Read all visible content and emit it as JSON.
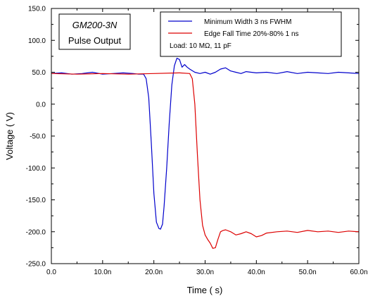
{
  "chart_data": {
    "type": "line",
    "title_box": {
      "line1": "GM200-3N",
      "line2": "Pulse Output"
    },
    "xlabel": "Time (   s)",
    "ylabel": "Voltage (  V)",
    "xlim": [
      0,
      60
    ],
    "ylim": [
      -250,
      150
    ],
    "x_ticks": [
      {
        "value": 0,
        "label": "0.0"
      },
      {
        "value": 10,
        "label": "10.0n"
      },
      {
        "value": 20,
        "label": "20.0n"
      },
      {
        "value": 30,
        "label": "30.0n"
      },
      {
        "value": 40,
        "label": "40.0n"
      },
      {
        "value": 50,
        "label": "50.0n"
      },
      {
        "value": 60,
        "label": "60.0n"
      }
    ],
    "y_ticks": [
      {
        "value": 150,
        "label": "150.0"
      },
      {
        "value": 100,
        "label": "100.0"
      },
      {
        "value": 50,
        "label": "50.0"
      },
      {
        "value": 0,
        "label": "0.0"
      },
      {
        "value": -50,
        "label": "-50.0"
      },
      {
        "value": -100,
        "label": "-100.0"
      },
      {
        "value": -150,
        "label": "-150.0"
      },
      {
        "value": -200,
        "label": "-200.0"
      },
      {
        "value": -250,
        "label": "-250.0"
      }
    ],
    "legend_note": "Load: 10 MΩ, 11 pF",
    "series": [
      {
        "name": "Minimum Width 3 ns FWHM",
        "color": "#0000cc",
        "x": [
          0,
          2,
          4,
          6,
          8,
          10,
          12,
          14,
          16,
          17,
          18,
          18.5,
          19,
          19.5,
          20,
          20.5,
          21,
          21.3,
          21.7,
          22,
          22.5,
          23,
          23.5,
          24,
          24.5,
          25,
          25.5,
          26,
          26.5,
          27,
          28,
          29,
          30,
          31,
          32,
          33,
          34,
          35,
          36,
          37,
          38,
          40,
          42,
          44,
          46,
          48,
          50,
          52,
          54,
          56,
          58,
          60
        ],
        "y": [
          48,
          49,
          47,
          48,
          50,
          47,
          48,
          49,
          48,
          47,
          47,
          40,
          10,
          -60,
          -140,
          -185,
          -195,
          -196,
          -188,
          -160,
          -100,
          -30,
          30,
          60,
          72,
          70,
          58,
          62,
          58,
          55,
          50,
          48,
          50,
          47,
          50,
          55,
          57,
          52,
          50,
          48,
          51,
          49,
          50,
          48,
          51,
          48,
          50,
          49,
          48,
          50,
          49,
          48
        ]
      },
      {
        "name": "Edge Fall Time 20%-80% 1 ns",
        "color": "#dd0000",
        "x": [
          0,
          5,
          10,
          15,
          20,
          25,
          27,
          27.5,
          28,
          28.5,
          29,
          29.5,
          30,
          30.5,
          31,
          31.5,
          32,
          32.5,
          33,
          33.5,
          34,
          35,
          36,
          37,
          38,
          39,
          40,
          41,
          42,
          44,
          46,
          48,
          50,
          52,
          54,
          56,
          58,
          60
        ],
        "y": [
          48,
          47,
          48,
          47,
          48,
          49,
          48,
          40,
          0,
          -80,
          -150,
          -190,
          -205,
          -212,
          -218,
          -226,
          -225,
          -212,
          -200,
          -198,
          -197,
          -200,
          -205,
          -203,
          -200,
          -203,
          -208,
          -206,
          -202,
          -200,
          -199,
          -201,
          -198,
          -200,
          -199,
          -201,
          -199,
          -200
        ]
      }
    ]
  }
}
